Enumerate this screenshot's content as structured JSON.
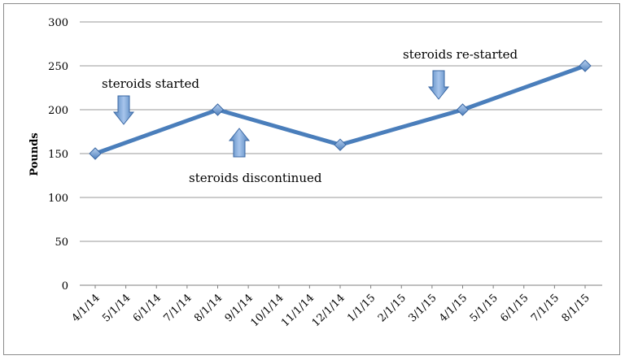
{
  "chart_data": {
    "type": "line",
    "title": "",
    "xlabel": "",
    "ylabel": "Pounds",
    "ylim": [
      0,
      300
    ],
    "yticks": [
      0,
      50,
      100,
      150,
      200,
      250,
      300
    ],
    "grid": "horizontal",
    "legend": "none",
    "categories": [
      "4/1/14",
      "5/1/14",
      "6/1/14",
      "7/1/14",
      "8/1/14",
      "9/1/14",
      "10/1/14",
      "11/1/14",
      "12/1/14",
      "1/1/15",
      "2/1/15",
      "3/1/15",
      "4/1/15",
      "5/1/15",
      "6/1/15",
      "7/1/15",
      "8/1/15"
    ],
    "series": [
      {
        "color": "#4a7ebb",
        "points": [
          {
            "x": "4/1/14",
            "y": 150
          },
          {
            "x": "8/1/14",
            "y": 200
          },
          {
            "x": "12/1/14",
            "y": 160
          },
          {
            "x": "4/1/15",
            "y": 200
          },
          {
            "x": "8/1/15",
            "y": 250
          }
        ]
      }
    ],
    "annotations": [
      {
        "text": "steroids started",
        "at": "5/1/14",
        "arrow": "down"
      },
      {
        "text": "steroids discontinued",
        "at": "9/1/14",
        "arrow": "up"
      },
      {
        "text": "steroids re-started",
        "at": "3/1/15",
        "arrow": "down"
      }
    ]
  }
}
